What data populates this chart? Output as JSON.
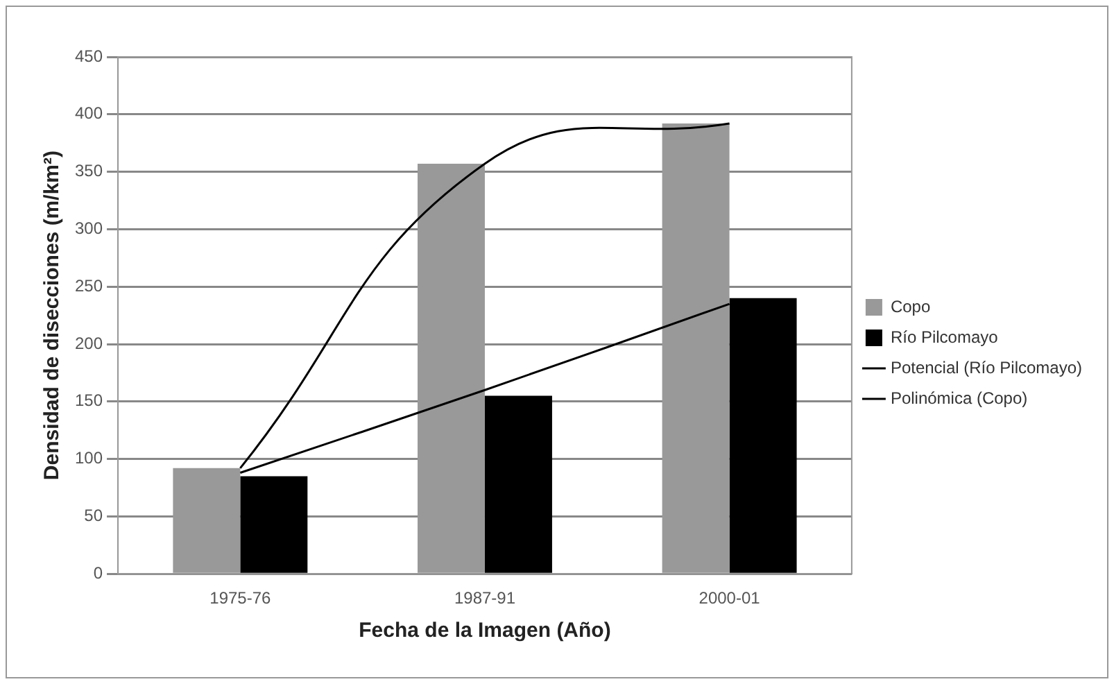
{
  "chart_data": {
    "type": "bar",
    "xlabel": "Fecha de la Imagen (Año)",
    "ylabel": "Densidad de disecciones (m/km²)",
    "categories": [
      "1975-76",
      "1987-91",
      "2000-01"
    ],
    "series": [
      {
        "name": "Copo",
        "color": "#999999",
        "values": [
          92,
          357,
          392
        ]
      },
      {
        "name": "Río Pilcomayo",
        "color": "#000000",
        "values": [
          85,
          155,
          240
        ]
      },
      {
        "name": "Potencial (Río Pilcomayo)",
        "type": "line",
        "color": "#000000",
        "values": [
          88,
          160,
          235
        ]
      },
      {
        "name": "Polinómica (Copo)",
        "type": "line",
        "color": "#000000",
        "values": [
          92,
          357,
          392
        ]
      }
    ],
    "ylim": [
      0,
      450
    ],
    "yticks": [
      0,
      50,
      100,
      150,
      200,
      250,
      300,
      350,
      400,
      450
    ],
    "grid": "y",
    "legend": "right",
    "marker": "none",
    "line_style": "solid"
  }
}
